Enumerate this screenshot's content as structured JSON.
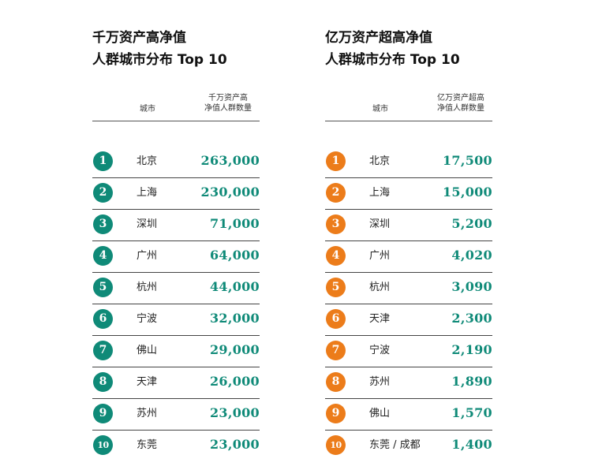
{
  "left": {
    "title_line1": "千万资产高净值",
    "title_line2": "人群城市分布 Top 10",
    "col_city": "城市",
    "col_count": "千万资产高\n净值人群数量",
    "badge_color": "#0f8a78",
    "rows": [
      {
        "rank": "1",
        "city": "北京",
        "value": "263,000"
      },
      {
        "rank": "2",
        "city": "上海",
        "value": "230,000"
      },
      {
        "rank": "3",
        "city": "深圳",
        "value": "71,000"
      },
      {
        "rank": "4",
        "city": "广州",
        "value": "64,000"
      },
      {
        "rank": "5",
        "city": "杭州",
        "value": "44,000"
      },
      {
        "rank": "6",
        "city": "宁波",
        "value": "32,000"
      },
      {
        "rank": "7",
        "city": "佛山",
        "value": "29,000"
      },
      {
        "rank": "8",
        "city": "天津",
        "value": "26,000"
      },
      {
        "rank": "9",
        "city": "苏州",
        "value": "23,000"
      },
      {
        "rank": "10",
        "city": "东莞",
        "value": "23,000"
      }
    ]
  },
  "right": {
    "title_line1": "亿万资产超高净值",
    "title_line2": "人群城市分布 Top 10",
    "col_city": "城市",
    "col_count": "亿万资产超高\n净值人群数量",
    "badge_color": "#ec7c1a",
    "rows": [
      {
        "rank": "1",
        "city": "北京",
        "value": "17,500"
      },
      {
        "rank": "2",
        "city": "上海",
        "value": "15,000"
      },
      {
        "rank": "3",
        "city": "深圳",
        "value": "5,200"
      },
      {
        "rank": "4",
        "city": "广州",
        "value": "4,020"
      },
      {
        "rank": "5",
        "city": "杭州",
        "value": "3,090"
      },
      {
        "rank": "6",
        "city": "天津",
        "value": "2,300"
      },
      {
        "rank": "7",
        "city": "宁波",
        "value": "2,190"
      },
      {
        "rank": "8",
        "city": "苏州",
        "value": "1,890"
      },
      {
        "rank": "9",
        "city": "佛山",
        "value": "1,570"
      },
      {
        "rank": "10",
        "city": "东莞 / 成都",
        "value": "1,400"
      }
    ]
  },
  "colors": {
    "value_text": "#0f8a78"
  }
}
